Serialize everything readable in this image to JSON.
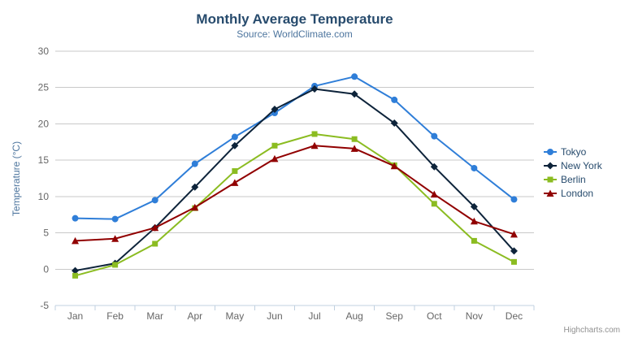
{
  "chart": {
    "title": "Monthly Average Temperature",
    "subtitle": "Source: WorldClimate.com",
    "credits": "Highcharts.com",
    "export_menu": {
      "icon": "hamburger-icon"
    }
  },
  "chart_data": {
    "type": "line",
    "title": "Monthly Average Temperature",
    "subtitle": "Source: WorldClimate.com",
    "xlabel": "",
    "ylabel": "Temperature (°C)",
    "categories": [
      "Jan",
      "Feb",
      "Mar",
      "Apr",
      "May",
      "Jun",
      "Jul",
      "Aug",
      "Sep",
      "Oct",
      "Nov",
      "Dec"
    ],
    "series": [
      {
        "name": "Tokyo",
        "color": "#2f7ed8",
        "marker": "circle",
        "values": [
          7.0,
          6.9,
          9.5,
          14.5,
          18.2,
          21.5,
          25.2,
          26.5,
          23.3,
          18.3,
          13.9,
          9.6
        ]
      },
      {
        "name": "New York",
        "color": "#0d233a",
        "marker": "diamond",
        "values": [
          -0.2,
          0.8,
          5.7,
          11.3,
          17.0,
          22.0,
          24.8,
          24.1,
          20.1,
          14.1,
          8.6,
          2.5
        ]
      },
      {
        "name": "Berlin",
        "color": "#8bbc21",
        "marker": "square",
        "values": [
          -0.9,
          0.6,
          3.5,
          8.4,
          13.5,
          17.0,
          18.6,
          17.9,
          14.3,
          9.0,
          3.9,
          1.0
        ]
      },
      {
        "name": "London",
        "color": "#910000",
        "marker": "triangle",
        "values": [
          3.9,
          4.2,
          5.7,
          8.5,
          11.9,
          15.2,
          17.0,
          16.6,
          14.2,
          10.3,
          6.6,
          4.8
        ]
      }
    ],
    "ylim": [
      -5,
      30
    ],
    "y_tick_step": 5,
    "grid": true,
    "legend_position": "right",
    "grid_color": "#C8C8C8",
    "axis_line_color": "#C0D0E0",
    "tick_label_color": "#666666"
  }
}
